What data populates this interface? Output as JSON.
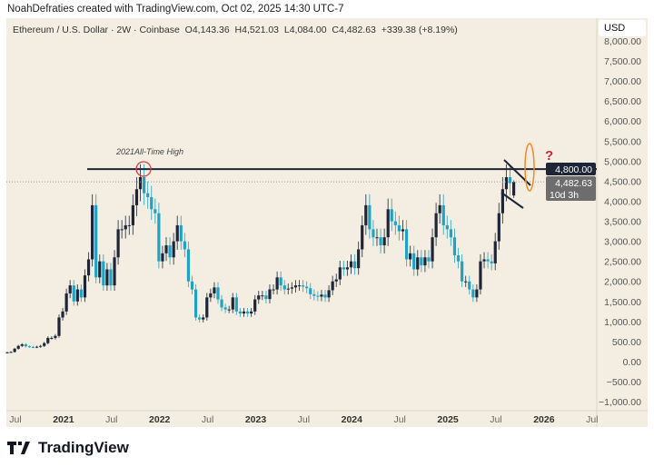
{
  "credit": "NoahDefraties created with TradingView.com, Oct 02, 2025 14:30 UTC-7",
  "legend": {
    "symbol": "Ethereum / U.S. Dollar · 2W · Coinbase",
    "open": "O4,143.36",
    "high": "H4,521.03",
    "low": "L4,084.00",
    "close": "C4,482.63",
    "change": "+339.38 (+8.19%)"
  },
  "currency": "USD",
  "brand": "TradingView",
  "chart_data": {
    "type": "candlestick",
    "interval": "2W",
    "start": "2020-06-15",
    "ylim": [
      -1000,
      8000
    ],
    "y_ticks": [
      "8,000.00",
      "7,500.00",
      "7,000.00",
      "6,500.00",
      "6,000.00",
      "5,500.00",
      "5,000.00",
      "4,500.00",
      "4,000.00",
      "3,500.00",
      "3,000.00",
      "2,500.00",
      "2,000.00",
      "1,500.00",
      "1,000.00",
      "500.00",
      "0.00",
      "−500.00",
      "−1,000.00"
    ],
    "x_ticks": [
      "Jul",
      "2021",
      "Jul",
      "2022",
      "Jul",
      "2023",
      "Jul",
      "2024",
      "Jul",
      "2025",
      "Jul",
      "2026",
      "Jul"
    ],
    "closes": [
      230,
      240,
      320,
      390,
      430,
      380,
      365,
      360,
      370,
      390,
      460,
      590,
      590,
      640,
      1100,
      1250,
      1700,
      1900,
      1500,
      1800,
      1600,
      2150,
      2550,
      3900,
      2100,
      2500,
      1900,
      2300,
      1900,
      2600,
      3300,
      3300,
      3400,
      3400,
      3900,
      4300,
      4600,
      4200,
      4100,
      3800,
      3700,
      2500,
      2700,
      2900,
      2600,
      3000,
      3400,
      3000,
      2800,
      2000,
      1800,
      1100,
      1050,
      1100,
      1600,
      1700,
      1850,
      1550,
      1350,
      1300,
      1300,
      1600,
      1250,
      1200,
      1250,
      1200,
      1250,
      1550,
      1650,
      1650,
      1560,
      1800,
      1800,
      2100,
      1900,
      1800,
      1820,
      1850,
      1900,
      1900,
      1870,
      1830,
      1680,
      1640,
      1620,
      1670,
      1600,
      1780,
      2000,
      2050,
      2350,
      2300,
      2350,
      2500,
      2330,
      2800,
      3400,
      3900,
      3300,
      3100,
      3100,
      2900,
      3100,
      3800,
      3500,
      3400,
      3250,
      3300,
      2550,
      2700,
      2300,
      2600,
      2400,
      2600,
      2500,
      3100,
      3700,
      3900,
      3400,
      3300,
      3100,
      2650,
      2500,
      2000,
      2000,
      1800,
      1600,
      1800,
      2500,
      2550,
      2500,
      2450,
      3000,
      3700,
      4300,
      4600,
      4450,
      4143.36
    ],
    "last_candle": {
      "open": 4143.36,
      "high": 4521.03,
      "low": 4084.0,
      "close": 4482.63
    },
    "up_color": "#1e2537",
    "down_color": "#1fa3c4",
    "annotations": {
      "resistance_level": 4800,
      "resistance_label": "4,800.00",
      "ath_label": "2021All-Time High",
      "last_price_label": "4,482.63",
      "countdown": "10d 3h",
      "question_mark": "?",
      "question_color": "#d0263a",
      "ellipse_color": "#f08a24",
      "circle_color": "#e23b3b"
    }
  }
}
